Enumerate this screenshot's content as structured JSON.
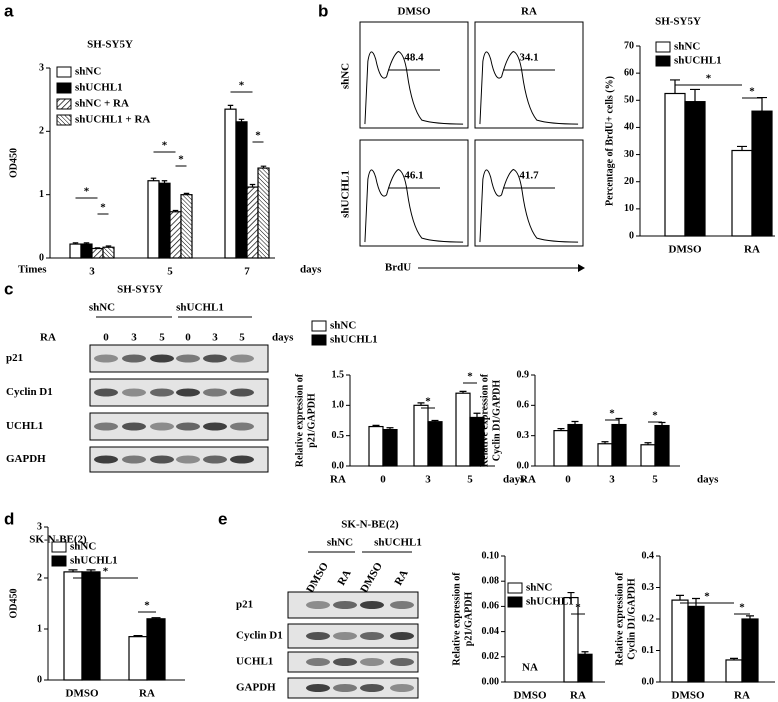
{
  "panel_labels": [
    "a",
    "b",
    "c",
    "d",
    "e"
  ],
  "flow": {
    "columns": [
      "DMSO",
      "RA"
    ],
    "rows": [
      "shNC",
      "shUCHL1"
    ],
    "values": [
      [
        48.4,
        34.1
      ],
      [
        46.1,
        41.7
      ]
    ],
    "x_label": "BrdU"
  },
  "blot_c": {
    "title": "SH-SY5Y",
    "groups": [
      "shNC",
      "shUCHL1"
    ],
    "lane_label": "RA",
    "lanes": [
      0,
      3,
      5,
      0,
      3,
      5
    ],
    "lane_unit": "days",
    "bands": [
      "p21",
      "Cyclin D1",
      "UCHL1",
      "GAPDH"
    ]
  },
  "blot_e": {
    "title": "SK-N-BE(2)",
    "groups": [
      "shNC",
      "shUCHL1"
    ],
    "lanes": [
      "DMSO",
      "RA",
      "DMSO",
      "RA"
    ],
    "bands": [
      "p21",
      "Cyclin D1",
      "UCHL1",
      "GAPDH"
    ]
  },
  "chart_data": [
    {
      "type": "bar",
      "title": "SH-SY5Y",
      "y_label": [
        "OD450"
      ],
      "x_label_left": "Times",
      "x_label_right": "days",
      "categories": [
        "3",
        "5",
        "7"
      ],
      "ylim": [
        0,
        3
      ],
      "yticks": [
        0,
        1,
        2,
        3
      ],
      "legend": true,
      "series": [
        {
          "name": "shNC",
          "color": "#ffffff",
          "values": [
            0.22,
            1.22,
            2.35
          ],
          "errors": [
            0.02,
            0.04,
            0.06
          ]
        },
        {
          "name": "shUCHL1",
          "color": "#000000",
          "values": [
            0.22,
            1.18,
            2.15
          ],
          "errors": [
            0.02,
            0.04,
            0.04
          ]
        },
        {
          "name": "shNC + RA",
          "color": "#ffffff",
          "hatch": "forward",
          "values": [
            0.15,
            0.73,
            1.12
          ],
          "errors": [
            0.01,
            0.02,
            0.04
          ]
        },
        {
          "name": "shUCHL1 + RA",
          "color": "#ffffff",
          "hatch": "backward",
          "values": [
            0.17,
            1.0,
            1.42
          ],
          "errors": [
            0.02,
            0.02,
            0.03
          ]
        }
      ],
      "annotations": [
        "*",
        "*",
        "*",
        "*",
        "*",
        "*"
      ]
    },
    {
      "type": "bar",
      "title": "SH-SY5Y",
      "y_label": [
        "Percentage of BrdU+ cells (%)"
      ],
      "categories": [
        "DMSO",
        "RA"
      ],
      "ylim": [
        0,
        70
      ],
      "yticks": [
        0,
        10,
        20,
        30,
        40,
        50,
        60,
        70
      ],
      "legend": true,
      "series": [
        {
          "name": "shNC",
          "color": "#ffffff",
          "values": [
            52.5,
            31.5
          ],
          "errors": [
            5,
            1.5
          ]
        },
        {
          "name": "shUCHL1",
          "color": "#000000",
          "values": [
            49.5,
            46
          ],
          "errors": [
            4.5,
            5
          ]
        }
      ],
      "annotations": [
        "*",
        "*"
      ]
    },
    {
      "type": "bar",
      "y_label": [
        "Relative expression of",
        "p21/GAPDH"
      ],
      "x_label_left": "RA",
      "x_label_right": "days",
      "categories": [
        "0",
        "3",
        "5"
      ],
      "ylim": [
        0,
        1.5
      ],
      "yticks": [
        {
          "value": 0,
          "label": "0.0"
        },
        0.5,
        {
          "value": 1,
          "label": "1.0"
        },
        1.5
      ],
      "legend": true,
      "series": [
        {
          "name": "shNC",
          "color": "#ffffff",
          "values": [
            0.65,
            1.0,
            1.2
          ],
          "errors": [
            0.02,
            0.04,
            0.03
          ]
        },
        {
          "name": "shUCHL1",
          "color": "#000000",
          "values": [
            0.6,
            0.73,
            0.8
          ],
          "errors": [
            0.03,
            0.02,
            0.07
          ]
        }
      ],
      "annotations": [
        "*",
        "*"
      ]
    },
    {
      "type": "bar",
      "y_label": [
        "Relative expression of",
        "Cyclin D1/GAPDH"
      ],
      "x_label_left": "RA",
      "x_label_right": "days",
      "categories": [
        "0",
        "3",
        "5"
      ],
      "ylim": [
        0,
        0.9
      ],
      "yticks": [
        {
          "value": 0,
          "label": "0.0"
        },
        0.3,
        0.6,
        0.9
      ],
      "legend": false,
      "series": [
        {
          "color": "#ffffff",
          "values": [
            0.35,
            0.22,
            0.21
          ],
          "errors": [
            0.02,
            0.02,
            0.02
          ]
        },
        {
          "color": "#000000",
          "values": [
            0.41,
            0.41,
            0.4
          ],
          "errors": [
            0.03,
            0.06,
            0.03
          ]
        }
      ],
      "annotations": [
        "*",
        "*"
      ]
    },
    {
      "type": "bar",
      "title": "SK-N-BE(2)",
      "y_label": [
        "OD450"
      ],
      "categories": [
        "DMSO",
        "RA"
      ],
      "ylim": [
        0,
        3
      ],
      "yticks": [
        0,
        1,
        2,
        3
      ],
      "legend": true,
      "series": [
        {
          "name": "shNC",
          "color": "#ffffff",
          "values": [
            2.12,
            0.85
          ],
          "errors": [
            0.04,
            0.02
          ]
        },
        {
          "name": "shUCHL1",
          "color": "#000000",
          "values": [
            2.12,
            1.2
          ],
          "errors": [
            0.04,
            0.02
          ]
        }
      ],
      "annotations": [
        "*",
        "*"
      ]
    },
    {
      "type": "bar",
      "y_label": [
        "Relative expression of",
        "p21/GAPDH"
      ],
      "null_label": "NA",
      "categories": [
        "DMSO",
        "RA"
      ],
      "ylim": [
        0,
        0.1
      ],
      "yticks": [
        {
          "value": 0,
          "label": "0.00"
        },
        {
          "value": 0.02,
          "label": "0.02"
        },
        {
          "value": 0.04,
          "label": "0.04"
        },
        {
          "value": 0.06,
          "label": "0.06"
        },
        {
          "value": 0.08,
          "label": "0.08"
        },
        {
          "value": 0.1,
          "label": "0.10"
        }
      ],
      "legend": true,
      "series": [
        {
          "name": "shNC",
          "color": "#ffffff",
          "values": [
            null,
            0.067
          ],
          "errors": [
            null,
            0.004
          ]
        },
        {
          "name": "shUCHL1",
          "color": "#000000",
          "values": [
            null,
            0.022
          ],
          "errors": [
            null,
            0.002
          ]
        }
      ],
      "annotations": [
        "*"
      ]
    },
    {
      "type": "bar",
      "y_label": [
        "Relative expression of",
        "Cyclin D1/GAPDH"
      ],
      "categories": [
        "DMSO",
        "RA"
      ],
      "ylim": [
        0,
        0.4
      ],
      "yticks": [
        {
          "value": 0,
          "label": "0.0"
        },
        0.1,
        0.2,
        0.3,
        0.4
      ],
      "legend": false,
      "series": [
        {
          "color": "#ffffff",
          "values": [
            0.26,
            0.07
          ],
          "errors": [
            0.015,
            0.005
          ]
        },
        {
          "color": "#000000",
          "values": [
            0.24,
            0.2
          ],
          "errors": [
            0.025,
            0.01
          ]
        }
      ],
      "annotations": [
        "*",
        "*"
      ]
    }
  ]
}
